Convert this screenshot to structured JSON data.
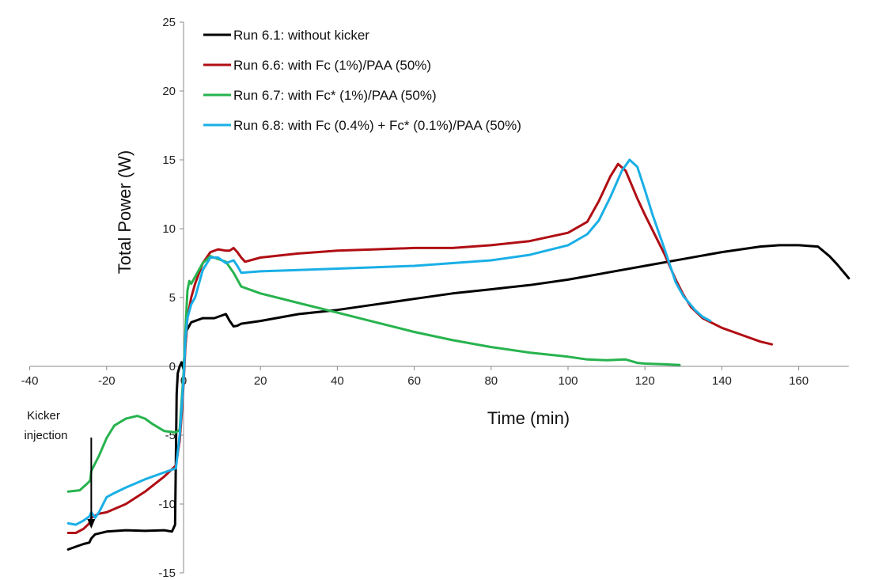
{
  "chart_data": {
    "type": "line",
    "title": "",
    "xlabel": "Time (min)",
    "ylabel": "Total Power (W)",
    "xlim": [
      -40,
      173
    ],
    "ylim": [
      -15,
      25
    ],
    "xticks": [
      -40,
      -20,
      0,
      20,
      40,
      60,
      80,
      100,
      120,
      140,
      160
    ],
    "yticks": [
      -15,
      -10,
      -5,
      0,
      5,
      10,
      15,
      20,
      25
    ],
    "grid": false,
    "legend_position": "top-left",
    "annotation": {
      "lines": [
        "Kicker",
        "injection"
      ],
      "x": -24
    },
    "series": [
      {
        "name": "Run 6.1: without kicker",
        "color": "#000000",
        "points": [
          [
            -30,
            -13.3
          ],
          [
            -28,
            -13.1
          ],
          [
            -26,
            -12.9
          ],
          [
            -24.5,
            -12.8
          ],
          [
            -24,
            -12.5
          ],
          [
            -23,
            -12.2
          ],
          [
            -20,
            -12.0
          ],
          [
            -15,
            -11.9
          ],
          [
            -10,
            -11.95
          ],
          [
            -5,
            -11.9
          ],
          [
            -3,
            -12.0
          ],
          [
            -2.2,
            -11.5
          ],
          [
            -1.8,
            -2
          ],
          [
            -1.5,
            -0.5
          ],
          [
            -1,
            0
          ],
          [
            -0.5,
            0.3
          ],
          [
            0,
            -0.2
          ],
          [
            0.3,
            1
          ],
          [
            0.8,
            2.6
          ],
          [
            2,
            3.2
          ],
          [
            5,
            3.5
          ],
          [
            8,
            3.5
          ],
          [
            10,
            3.7
          ],
          [
            11,
            3.8
          ],
          [
            12,
            3.3
          ],
          [
            13,
            2.9
          ],
          [
            14,
            2.95
          ],
          [
            15,
            3.1
          ],
          [
            20,
            3.3
          ],
          [
            30,
            3.8
          ],
          [
            40,
            4.1
          ],
          [
            50,
            4.5
          ],
          [
            60,
            4.9
          ],
          [
            70,
            5.3
          ],
          [
            80,
            5.6
          ],
          [
            90,
            5.9
          ],
          [
            100,
            6.3
          ],
          [
            110,
            6.8
          ],
          [
            120,
            7.3
          ],
          [
            130,
            7.8
          ],
          [
            140,
            8.3
          ],
          [
            150,
            8.7
          ],
          [
            155,
            8.8
          ],
          [
            160,
            8.8
          ],
          [
            165,
            8.7
          ],
          [
            168,
            8.0
          ],
          [
            170,
            7.4
          ],
          [
            173,
            6.4
          ]
        ]
      },
      {
        "name": "Run 6.6: with Fc (1%)/PAA (50%)",
        "color": "#b00e14",
        "points": [
          [
            -30,
            -12.1
          ],
          [
            -28,
            -12.1
          ],
          [
            -26,
            -11.8
          ],
          [
            -24.5,
            -11.4
          ],
          [
            -24,
            -11.0
          ],
          [
            -22,
            -10.7
          ],
          [
            -20,
            -10.6
          ],
          [
            -15,
            -10.0
          ],
          [
            -10,
            -9.1
          ],
          [
            -5,
            -8.0
          ],
          [
            -2,
            -7.2
          ],
          [
            -1,
            -5.4
          ],
          [
            -0.5,
            -3.5
          ],
          [
            0,
            -1.3
          ],
          [
            0.5,
            1.5
          ],
          [
            1,
            3.5
          ],
          [
            2,
            5.0
          ],
          [
            3,
            6.0
          ],
          [
            5,
            7.5
          ],
          [
            7,
            8.3
          ],
          [
            9,
            8.5
          ],
          [
            11,
            8.4
          ],
          [
            12,
            8.4
          ],
          [
            13,
            8.6
          ],
          [
            14,
            8.3
          ],
          [
            15,
            7.9
          ],
          [
            16,
            7.6
          ],
          [
            20,
            7.9
          ],
          [
            30,
            8.2
          ],
          [
            40,
            8.4
          ],
          [
            50,
            8.5
          ],
          [
            60,
            8.6
          ],
          [
            70,
            8.6
          ],
          [
            80,
            8.8
          ],
          [
            90,
            9.1
          ],
          [
            100,
            9.7
          ],
          [
            105,
            10.5
          ],
          [
            108,
            12.0
          ],
          [
            111,
            13.8
          ],
          [
            113,
            14.7
          ],
          [
            115,
            14.2
          ],
          [
            118,
            12.2
          ],
          [
            120,
            11.0
          ],
          [
            125,
            8.2
          ],
          [
            128,
            6.3
          ],
          [
            130,
            5.2
          ],
          [
            132,
            4.3
          ],
          [
            135,
            3.5
          ],
          [
            140,
            2.8
          ],
          [
            145,
            2.3
          ],
          [
            150,
            1.8
          ],
          [
            153,
            1.6
          ]
        ]
      },
      {
        "name": "Run 6.7: with Fc* (1%)/PAA (50%)",
        "color": "#27b34e",
        "points": [
          [
            -30,
            -9.1
          ],
          [
            -27,
            -9.0
          ],
          [
            -25,
            -8.5
          ],
          [
            -24.3,
            -8.3
          ],
          [
            -24,
            -7.6
          ],
          [
            -22,
            -6.5
          ],
          [
            -20,
            -5.2
          ],
          [
            -18,
            -4.3
          ],
          [
            -15,
            -3.8
          ],
          [
            -12,
            -3.6
          ],
          [
            -10,
            -3.8
          ],
          [
            -8,
            -4.2
          ],
          [
            -5,
            -4.7
          ],
          [
            -2,
            -4.8
          ],
          [
            -1,
            -4.6
          ],
          [
            -0.5,
            -2.5
          ],
          [
            0,
            -0.5
          ],
          [
            0.5,
            2.5
          ],
          [
            1,
            5.5
          ],
          [
            1.5,
            6.2
          ],
          [
            2,
            6.0
          ],
          [
            3,
            6.5
          ],
          [
            5,
            7.5
          ],
          [
            7,
            8.0
          ],
          [
            9,
            7.8
          ],
          [
            11,
            7.6
          ],
          [
            13,
            6.8
          ],
          [
            15,
            5.8
          ],
          [
            20,
            5.3
          ],
          [
            30,
            4.6
          ],
          [
            40,
            3.9
          ],
          [
            50,
            3.2
          ],
          [
            60,
            2.5
          ],
          [
            70,
            1.9
          ],
          [
            80,
            1.4
          ],
          [
            90,
            1.0
          ],
          [
            100,
            0.7
          ],
          [
            105,
            0.5
          ],
          [
            110,
            0.45
          ],
          [
            115,
            0.5
          ],
          [
            118,
            0.25
          ],
          [
            120,
            0.2
          ],
          [
            125,
            0.15
          ],
          [
            129,
            0.1
          ]
        ]
      },
      {
        "name": "Run 6.8: with Fc (0.4%) + Fc* (0.1%)/PAA (50%)",
        "color": "#1aafe6",
        "points": [
          [
            -30,
            -11.4
          ],
          [
            -28,
            -11.5
          ],
          [
            -26,
            -11.2
          ],
          [
            -24.5,
            -10.9
          ],
          [
            -24,
            -10.6
          ],
          [
            -23,
            -11.0
          ],
          [
            -22,
            -10.6
          ],
          [
            -20,
            -9.5
          ],
          [
            -18,
            -9.2
          ],
          [
            -15,
            -8.8
          ],
          [
            -10,
            -8.2
          ],
          [
            -5,
            -7.7
          ],
          [
            -2,
            -7.4
          ],
          [
            -1,
            -5.0
          ],
          [
            -0.5,
            -3.0
          ],
          [
            0,
            -1.0
          ],
          [
            0.5,
            2.0
          ],
          [
            1,
            3.5
          ],
          [
            2,
            4.5
          ],
          [
            3,
            5.0
          ],
          [
            5,
            7.0
          ],
          [
            7,
            7.9
          ],
          [
            9,
            7.9
          ],
          [
            11,
            7.5
          ],
          [
            13,
            7.7
          ],
          [
            14,
            7.3
          ],
          [
            15,
            6.8
          ],
          [
            20,
            6.9
          ],
          [
            30,
            7.0
          ],
          [
            40,
            7.1
          ],
          [
            50,
            7.2
          ],
          [
            60,
            7.3
          ],
          [
            70,
            7.5
          ],
          [
            80,
            7.7
          ],
          [
            90,
            8.1
          ],
          [
            100,
            8.8
          ],
          [
            105,
            9.6
          ],
          [
            108,
            10.6
          ],
          [
            111,
            12.3
          ],
          [
            114,
            14.2
          ],
          [
            116,
            15.0
          ],
          [
            118,
            14.5
          ],
          [
            120,
            12.8
          ],
          [
            122,
            11.0
          ],
          [
            125,
            8.6
          ],
          [
            128,
            6.1
          ],
          [
            130,
            5.1
          ],
          [
            133,
            4.1
          ],
          [
            135,
            3.6
          ],
          [
            137,
            3.3
          ]
        ]
      }
    ]
  }
}
